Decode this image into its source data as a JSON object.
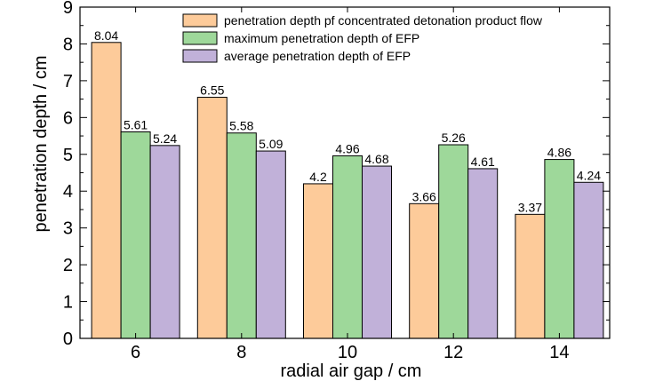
{
  "chart_data": {
    "type": "bar",
    "xlabel": "radial air gap / cm",
    "ylabel": "penetration depth / cm",
    "ylim": [
      0,
      9
    ],
    "yticks": [
      0,
      1,
      2,
      3,
      4,
      5,
      6,
      7,
      8,
      9
    ],
    "categories": [
      "6",
      "8",
      "10",
      "12",
      "14"
    ],
    "grid": false,
    "legend_position": "top-right",
    "series": [
      {
        "name": "penetration depth pf concentrated detonation product flow",
        "color": "#FDCB9A",
        "values": [
          8.04,
          6.55,
          4.2,
          3.66,
          3.37
        ],
        "labels": [
          "8.04",
          "6.55",
          "4.2",
          "3.66",
          "3.37"
        ]
      },
      {
        "name": "maximum penetration depth of EFP",
        "color": "#9ED89A",
        "values": [
          5.61,
          5.58,
          4.96,
          5.26,
          4.86
        ],
        "labels": [
          "5.61",
          "5.58",
          "4.96",
          "5.26",
          "4.86"
        ]
      },
      {
        "name": "average penetration depth of EFP",
        "color": "#C1B1D9",
        "values": [
          5.24,
          5.09,
          4.68,
          4.61,
          4.24
        ],
        "labels": [
          "5.24",
          "5.09",
          "4.68",
          "4.61",
          "4.24"
        ]
      }
    ]
  }
}
